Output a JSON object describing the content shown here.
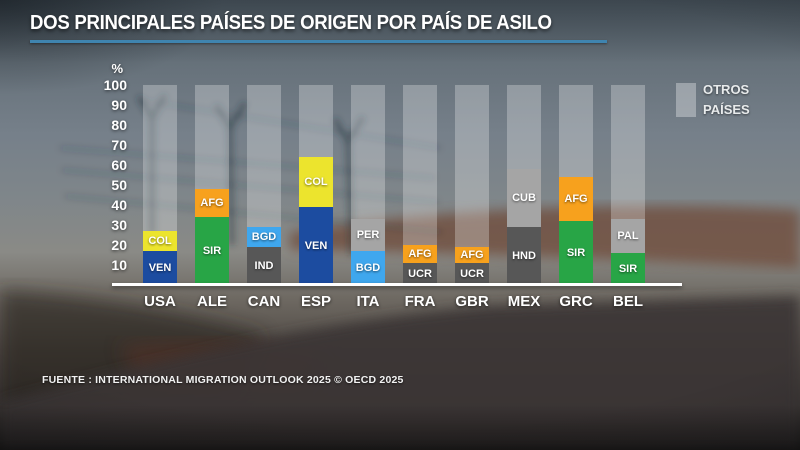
{
  "title": "DOS PRINCIPALES PAÍSES DE ORIGEN POR PAÍS DE ASILO",
  "source": "FUENTE : INTERNATIONAL MIGRATION OUTLOOK 2025 © OECD 2025",
  "legend": {
    "line1": "OTROS",
    "line2": "PAÍSES",
    "swatch_color": "rgba(255,255,255,0.33)"
  },
  "axis": {
    "unit": "%",
    "ticks": [
      100,
      90,
      80,
      70,
      60,
      50,
      40,
      30,
      20,
      10
    ]
  },
  "accent_colors": {
    "title_underline": "#3f84af",
    "venezuela_blue": "#1c4ca0",
    "colombia_yellow": "#ece42d",
    "syria_green": "#28a546",
    "afghanistan_orange": "#f7a11d",
    "bangladesh_lightblue": "#3fa7ee",
    "dark_gray": "#575757",
    "light_gray": "#a5a5a5"
  },
  "chart_data": {
    "type": "bar",
    "stacked": true,
    "title": "DOS PRINCIPALES PAÍSES DE ORIGEN POR PAÍS DE ASILO",
    "xlabel": "",
    "ylabel": "%",
    "ylim": [
      0,
      100
    ],
    "grid": false,
    "legend_position": "top-right",
    "remainder_label": "OTROS PAÍSES",
    "remainder_fill_to": 100,
    "categories": [
      "USA",
      "ALE",
      "CAN",
      "ESP",
      "ITA",
      "FRA",
      "GBR",
      "MEX",
      "GRC",
      "BEL"
    ],
    "bars": [
      {
        "category": "USA",
        "segments": [
          {
            "code": "VEN",
            "value": 17,
            "color": "#1c4ca0"
          },
          {
            "code": "COL",
            "value": 10,
            "color": "#ece42d"
          }
        ]
      },
      {
        "category": "ALE",
        "segments": [
          {
            "code": "SIR",
            "value": 34,
            "color": "#28a546"
          },
          {
            "code": "AFG",
            "value": 14,
            "color": "#f7a11d"
          }
        ]
      },
      {
        "category": "CAN",
        "segments": [
          {
            "code": "IND",
            "value": 19,
            "color": "#575757"
          },
          {
            "code": "BGD",
            "value": 10,
            "color": "#3fa7ee"
          }
        ]
      },
      {
        "category": "ESP",
        "segments": [
          {
            "code": "VEN",
            "value": 39,
            "color": "#1c4ca0"
          },
          {
            "code": "COL",
            "value": 25,
            "color": "#ece42d"
          }
        ]
      },
      {
        "category": "ITA",
        "segments": [
          {
            "code": "BGD",
            "value": 17,
            "color": "#3fa7ee"
          },
          {
            "code": "PER",
            "value": 16,
            "color": "#a5a5a5"
          }
        ]
      },
      {
        "category": "FRA",
        "segments": [
          {
            "code": "UCR",
            "value": 11,
            "color": "#575757"
          },
          {
            "code": "AFG",
            "value": 9,
            "color": "#f7a11d"
          }
        ]
      },
      {
        "category": "GBR",
        "segments": [
          {
            "code": "UCR",
            "value": 11,
            "color": "#575757"
          },
          {
            "code": "AFG",
            "value": 8,
            "color": "#f7a11d"
          }
        ]
      },
      {
        "category": "MEX",
        "segments": [
          {
            "code": "HND",
            "value": 29,
            "color": "#575757"
          },
          {
            "code": "CUB",
            "value": 29,
            "color": "#a5a5a5"
          }
        ]
      },
      {
        "category": "GRC",
        "segments": [
          {
            "code": "SIR",
            "value": 32,
            "color": "#28a546"
          },
          {
            "code": "AFG",
            "value": 22,
            "color": "#f7a11d"
          }
        ]
      },
      {
        "category": "BEL",
        "segments": [
          {
            "code": "SIR",
            "value": 16,
            "color": "#28a546"
          },
          {
            "code": "PAL",
            "value": 17,
            "color": "#a5a5a5"
          }
        ]
      }
    ]
  }
}
